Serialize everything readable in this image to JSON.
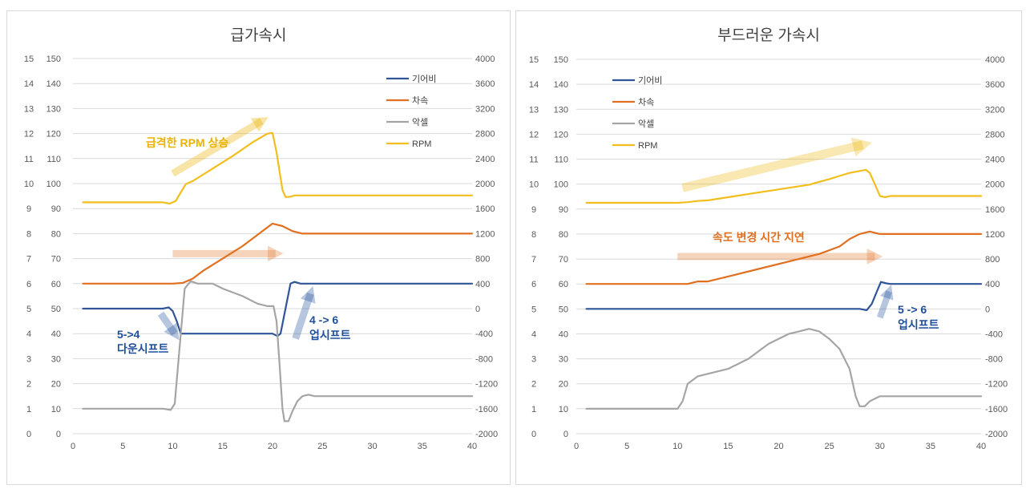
{
  "colors": {
    "gear": "#2F5597",
    "speed": "#E07020",
    "accel": "#A5A5A5",
    "rpm": "#F2BE1E",
    "grid": "#D9D9D9",
    "note_blue": "#1F4E9A",
    "note_orange": "#E07020",
    "note_yellow": "#EAB200"
  },
  "chart_data": [
    {
      "type": "line",
      "title": "급가속시",
      "xlim": [
        0,
        40
      ],
      "x_ticks": [
        "0",
        "5",
        "10",
        "15",
        "20",
        "25",
        "30",
        "35",
        "40"
      ],
      "y_left_outer_ticks": [
        "0",
        "1",
        "2",
        "3",
        "4",
        "5",
        "6",
        "7",
        "8",
        "9",
        "10",
        "11",
        "12",
        "13",
        "14",
        "15"
      ],
      "y_left_ticks": [
        "0",
        "10",
        "20",
        "30",
        "40",
        "50",
        "60",
        "70",
        "80",
        "90",
        "100",
        "110",
        "120",
        "130",
        "140",
        "150"
      ],
      "y_right_ticks": [
        "-2000",
        "-1600",
        "-1200",
        "-800",
        "-400",
        "0",
        "400",
        "800",
        "1200",
        "1600",
        "2000",
        "2400",
        "2800",
        "3200",
        "3600",
        "4000"
      ],
      "ylim_left": [
        0,
        150
      ],
      "ylim_right": [
        -2000,
        4000
      ],
      "grid": true,
      "legend_position": "top-right",
      "series": [
        {
          "name": "기어비",
          "axis": "left",
          "color_key": "gear",
          "points": [
            [
              1,
              50
            ],
            [
              9,
              50
            ],
            [
              9.6,
              50.5
            ],
            [
              10,
              49
            ],
            [
              10.4,
              45
            ],
            [
              10.8,
              40
            ],
            [
              11.4,
              40
            ],
            [
              19,
              40
            ],
            [
              20,
              40
            ],
            [
              20.5,
              39
            ],
            [
              20.8,
              40
            ],
            [
              21.3,
              50
            ],
            [
              21.8,
              60
            ],
            [
              22.2,
              60.7
            ],
            [
              22.8,
              60
            ],
            [
              40,
              60
            ]
          ]
        },
        {
          "name": "차속",
          "axis": "left",
          "color_key": "speed",
          "points": [
            [
              1,
              60
            ],
            [
              9,
              60
            ],
            [
              10,
              60
            ],
            [
              11,
              60.3
            ],
            [
              12,
              62
            ],
            [
              13,
              65
            ],
            [
              15,
              70
            ],
            [
              17,
              75
            ],
            [
              19,
              81
            ],
            [
              20,
              84
            ],
            [
              21,
              83
            ],
            [
              22,
              81
            ],
            [
              23,
              80
            ],
            [
              40,
              80
            ]
          ]
        },
        {
          "name": "악셀",
          "axis": "left",
          "color_key": "accel",
          "points": [
            [
              1,
              10
            ],
            [
              9,
              10
            ],
            [
              9.8,
              9.5
            ],
            [
              10.2,
              12
            ],
            [
              10.7,
              35
            ],
            [
              11.2,
              58
            ],
            [
              11.8,
              61
            ],
            [
              12.5,
              60
            ],
            [
              14,
              60
            ],
            [
              15,
              58
            ],
            [
              17,
              55
            ],
            [
              18.5,
              52
            ],
            [
              19.5,
              51
            ],
            [
              20.1,
              51
            ],
            [
              20.4,
              45
            ],
            [
              20.7,
              28
            ],
            [
              21,
              10
            ],
            [
              21.2,
              5
            ],
            [
              21.6,
              5
            ],
            [
              22,
              9
            ],
            [
              22.5,
              13
            ],
            [
              23,
              15
            ],
            [
              23.6,
              15.6
            ],
            [
              24.2,
              15
            ],
            [
              40,
              15
            ]
          ]
        },
        {
          "name": "RPM",
          "axis": "right",
          "color_key": "rpm",
          "points": [
            [
              1,
              1700
            ],
            [
              9,
              1700
            ],
            [
              9.7,
              1680
            ],
            [
              10.3,
              1720
            ],
            [
              10.8,
              1860
            ],
            [
              11.3,
              1990
            ],
            [
              12,
              2040
            ],
            [
              14,
              2240
            ],
            [
              16,
              2440
            ],
            [
              18,
              2660
            ],
            [
              19.5,
              2800
            ],
            [
              20,
              2810
            ],
            [
              20.4,
              2500
            ],
            [
              20.7,
              2200
            ],
            [
              21,
              1900
            ],
            [
              21.3,
              1785
            ],
            [
              21.8,
              1790
            ],
            [
              22.2,
              1810
            ],
            [
              40,
              1810
            ]
          ]
        }
      ],
      "annotations": [
        {
          "text": "급격한 RPM 상승",
          "color_key": "note_yellow"
        },
        {
          "text_lines": [
            "5->4",
            "다운시프트"
          ],
          "color_key": "note_blue"
        },
        {
          "text_lines": [
            "4 -> 6",
            "업시프트"
          ],
          "color_key": "note_blue"
        }
      ]
    },
    {
      "type": "line",
      "title": "부드러운 가속시",
      "xlim": [
        0,
        40
      ],
      "x_ticks": [
        "0",
        "5",
        "10",
        "15",
        "20",
        "25",
        "30",
        "35",
        "40"
      ],
      "y_left_outer_ticks": [
        "0",
        "1",
        "2",
        "3",
        "4",
        "5",
        "6",
        "7",
        "8",
        "9",
        "10",
        "11",
        "12",
        "13",
        "14",
        "15"
      ],
      "y_left_ticks": [
        "0",
        "10",
        "20",
        "30",
        "40",
        "50",
        "60",
        "70",
        "80",
        "90",
        "100",
        "110",
        "120",
        "130",
        "140",
        "150"
      ],
      "y_right_ticks": [
        "-2000",
        "-1600",
        "-1200",
        "-800",
        "-400",
        "0",
        "400",
        "800",
        "1200",
        "1600",
        "2000",
        "2400",
        "2800",
        "3200",
        "3600",
        "4000"
      ],
      "ylim_left": [
        0,
        150
      ],
      "ylim_right": [
        -2000,
        4000
      ],
      "grid": true,
      "legend_position": "top-left",
      "series": [
        {
          "name": "기어비",
          "axis": "left",
          "color_key": "gear",
          "points": [
            [
              1,
              50
            ],
            [
              28,
              50
            ],
            [
              28.7,
              49.5
            ],
            [
              29.2,
              52
            ],
            [
              29.7,
              57
            ],
            [
              30.1,
              60.8
            ],
            [
              30.6,
              60.3
            ],
            [
              31,
              60
            ],
            [
              40,
              60
            ]
          ]
        },
        {
          "name": "차속",
          "axis": "left",
          "color_key": "speed",
          "points": [
            [
              1,
              60
            ],
            [
              10,
              60
            ],
            [
              11,
              60
            ],
            [
              12,
              61
            ],
            [
              13,
              61
            ],
            [
              15,
              63
            ],
            [
              18,
              66
            ],
            [
              21,
              69
            ],
            [
              24,
              72
            ],
            [
              26,
              75
            ],
            [
              27,
              78
            ],
            [
              28,
              80
            ],
            [
              29,
              81
            ],
            [
              29.5,
              80.5
            ],
            [
              30,
              80
            ],
            [
              40,
              80
            ]
          ]
        },
        {
          "name": "악셀",
          "axis": "left",
          "color_key": "accel",
          "points": [
            [
              1,
              10
            ],
            [
              9,
              10
            ],
            [
              10,
              10
            ],
            [
              10.5,
              13
            ],
            [
              11,
              20
            ],
            [
              12,
              23
            ],
            [
              13,
              24
            ],
            [
              15,
              26
            ],
            [
              17,
              30
            ],
            [
              19,
              36
            ],
            [
              21,
              40
            ],
            [
              22,
              41
            ],
            [
              23,
              42
            ],
            [
              24,
              41
            ],
            [
              25,
              38
            ],
            [
              26,
              34
            ],
            [
              27,
              26
            ],
            [
              27.6,
              15
            ],
            [
              28,
              11
            ],
            [
              28.5,
              11
            ],
            [
              29,
              13
            ],
            [
              30,
              15
            ],
            [
              31,
              15
            ],
            [
              40,
              15
            ]
          ]
        },
        {
          "name": "RPM",
          "axis": "right",
          "color_key": "rpm",
          "points": [
            [
              1,
              1700
            ],
            [
              10,
              1700
            ],
            [
              11,
              1710
            ],
            [
              12,
              1730
            ],
            [
              13,
              1740
            ],
            [
              15,
              1790
            ],
            [
              17,
              1840
            ],
            [
              19,
              1890
            ],
            [
              21,
              1940
            ],
            [
              23,
              1990
            ],
            [
              25,
              2080
            ],
            [
              26,
              2130
            ],
            [
              27,
              2180
            ],
            [
              28,
              2210
            ],
            [
              28.6,
              2230
            ],
            [
              29,
              2180
            ],
            [
              29.5,
              2000
            ],
            [
              30,
              1810
            ],
            [
              30.5,
              1790
            ],
            [
              31,
              1810
            ],
            [
              40,
              1810
            ]
          ]
        }
      ],
      "annotations": [
        {
          "text": "속도 변경 시간 지연",
          "color_key": "note_orange"
        },
        {
          "text_lines": [
            "5 -> 6",
            "업시프트"
          ],
          "color_key": "note_blue"
        }
      ]
    }
  ]
}
